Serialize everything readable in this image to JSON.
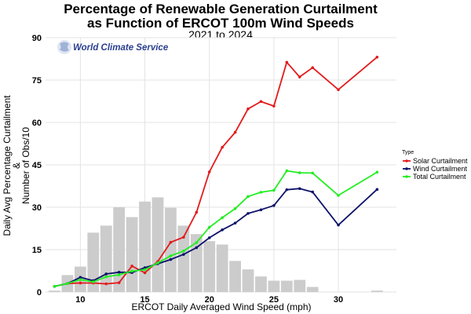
{
  "chart_data": {
    "type": "line",
    "title_line1": "Percentage of Renewable Generation Curtailment",
    "title_line2": "as Function of ERCOT 100m Wind Speeds",
    "subtitle": "2021 to 2024",
    "xlabel": "ERCOT Daily Averaged Wind Speed (mph)",
    "ylabel_line1": "Daily Avg Percentage Curtailment",
    "ylabel_line2": "&",
    "ylabel_line3": "Number of Obs/10",
    "xlim": [
      7.3,
      34.5
    ],
    "ylim": [
      0,
      90
    ],
    "xticks": [
      10,
      15,
      20,
      25,
      30
    ],
    "yticks": [
      0,
      15,
      30,
      45,
      60,
      75,
      90
    ],
    "grid": true,
    "logo_text": "World Climate Service",
    "legend": {
      "title": "Type",
      "position": "right",
      "entries": [
        "Solar Curtailment",
        "Wind Curtailment",
        "Total Curtailment"
      ]
    },
    "histogram": {
      "name": "Number of Obs/10",
      "color": "#cccccc",
      "x": [
        8,
        9,
        10,
        11,
        12,
        13,
        14,
        15,
        16,
        17,
        18,
        19,
        20,
        21,
        22,
        23,
        24,
        25,
        26,
        27,
        28,
        29,
        30,
        31,
        32,
        33
      ],
      "values": [
        0.5,
        6,
        9,
        21,
        23.5,
        30,
        26.5,
        32,
        33.5,
        29.8,
        23.5,
        20.5,
        18,
        16.8,
        11,
        8,
        5.5,
        4,
        4,
        4.3,
        1.8,
        0,
        0,
        0,
        0,
        0.5
      ]
    },
    "x": [
      8,
      9,
      10,
      11,
      12,
      13,
      14,
      15,
      16,
      17,
      18,
      19,
      20,
      21,
      22,
      23,
      24,
      25,
      26,
      27,
      28,
      30,
      33
    ],
    "series": [
      {
        "name": "Solar Curtailment",
        "color": "#e31a1c",
        "values": [
          2,
          3,
          3.2,
          3.2,
          2.9,
          3.3,
          9.2,
          6.8,
          10.8,
          17.6,
          19.4,
          28.2,
          42.5,
          51.2,
          56.5,
          64.8,
          67.4,
          65.8,
          81.3,
          76.1,
          79.4,
          71.6,
          83.1
        ]
      },
      {
        "name": "Wind Curtailment",
        "color": "#0d1369",
        "values": [
          2,
          3,
          5.2,
          4,
          6.4,
          7,
          6.9,
          8.6,
          10,
          11.5,
          13.3,
          15.7,
          19.2,
          22,
          24.4,
          27.8,
          29.1,
          30.6,
          36.2,
          36.6,
          35.4,
          23.7,
          36.3
        ]
      },
      {
        "name": "Total Curtailment",
        "color": "#22ee22",
        "values": [
          2,
          3,
          4.4,
          3.6,
          5.4,
          6.1,
          7.4,
          7.9,
          10.3,
          12.8,
          14.5,
          17.5,
          22.9,
          26.3,
          29.5,
          33.8,
          35.3,
          36,
          42.9,
          42.2,
          42.1,
          34.2,
          42.4
        ]
      }
    ]
  }
}
